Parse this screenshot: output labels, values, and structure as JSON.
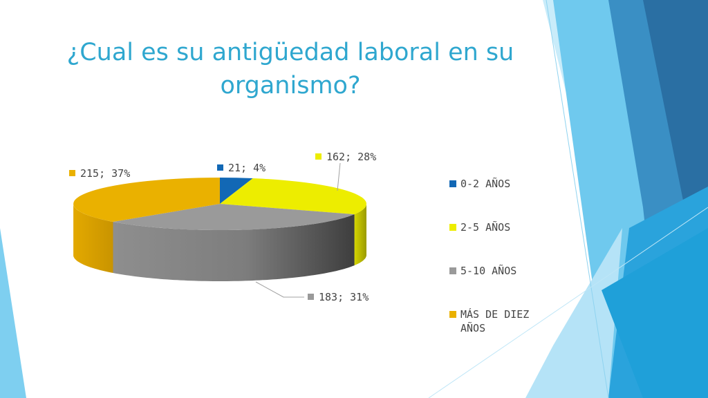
{
  "slide": {
    "title_line1": "¿Cual es su antigüedad laboral en su",
    "title_line2": "organismo?"
  },
  "colors": {
    "blue": "#1268b5",
    "yellow": "#eded00",
    "gray": "#9a9a9a",
    "orange": "#eab100",
    "title": "#2fa7cf"
  },
  "chart_data": {
    "type": "pie",
    "title": "",
    "categories": [
      "0-2 AÑOS",
      "2-5 AÑOS",
      "5-10 AÑOS",
      "MÁS DE DIEZ AÑOS"
    ],
    "values": [
      21,
      162,
      183,
      215
    ],
    "percentages": [
      4,
      28,
      31,
      37
    ],
    "data_labels": [
      "21; 4%",
      "162; 28%",
      "183; 31%",
      "215; 37%"
    ],
    "legend_position": "right",
    "style": "3d"
  }
}
